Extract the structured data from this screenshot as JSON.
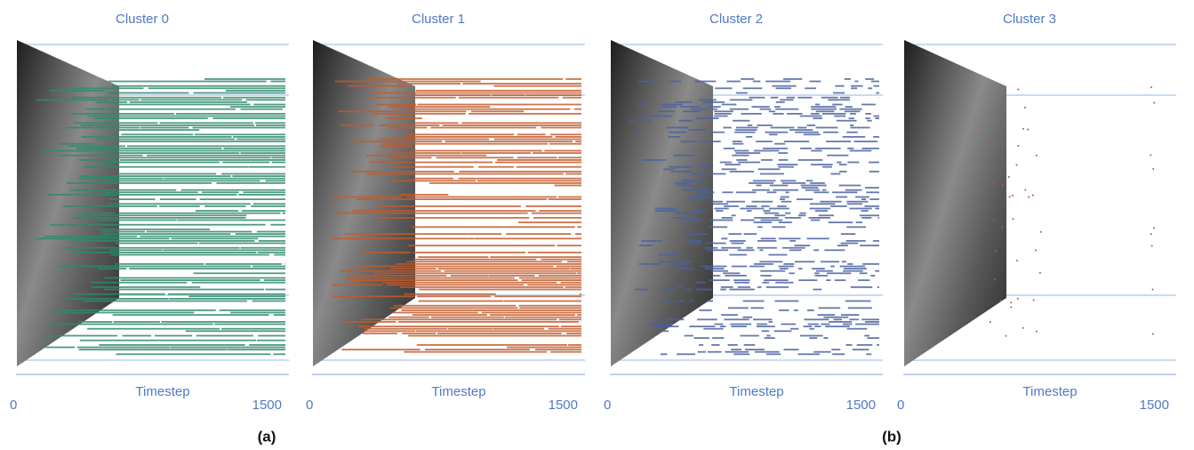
{
  "panels": [
    {
      "title": "Cluster 0",
      "x_label": "Timestep",
      "x_ticks": [
        0,
        1500
      ],
      "color": "#2f8a6c"
    },
    {
      "title": "Cluster 1",
      "x_label": "Timestep",
      "x_ticks": [
        0,
        1500
      ],
      "color": "#c25a2c"
    },
    {
      "title": "Cluster 2",
      "x_label": "Timestep",
      "x_ticks": [
        0,
        1500
      ],
      "color": "#4a62a0"
    },
    {
      "title": "Cluster 3",
      "x_label": "Timestep",
      "x_ticks": [
        0,
        1500
      ],
      "color": "#c0504d"
    }
  ],
  "captions": [
    "(a)",
    "(b)"
  ]
}
